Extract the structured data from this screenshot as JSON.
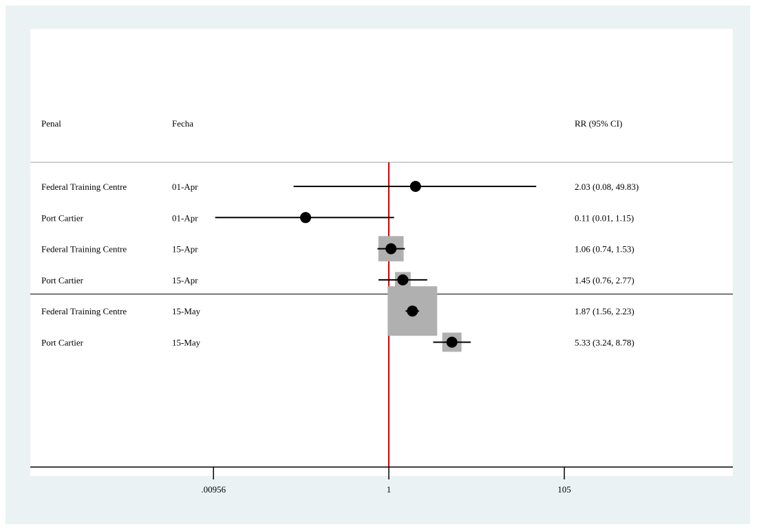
{
  "chart_data": {
    "type": "forest",
    "headers": {
      "col1": "Penal",
      "col2": "Fecha",
      "col3": "RR (95% CI)"
    },
    "x_scale": "log",
    "xlim": [
      9e-05,
      10000
    ],
    "ref_line": 1,
    "x_ticks": [
      {
        "value": 0.00956,
        "label": ".00956"
      },
      {
        "value": 1,
        "label": "1"
      },
      {
        "value": 105,
        "label": "105"
      }
    ],
    "rows": [
      {
        "penal": "Federal Training Centre",
        "fecha": "01-Apr",
        "rr": 2.03,
        "lo": 0.08,
        "hi": 49.83,
        "label": "2.03 (0.08, 49.83)",
        "weight": 0
      },
      {
        "penal": "Port Cartier",
        "fecha": "01-Apr",
        "rr": 0.11,
        "lo": 0.01,
        "hi": 1.15,
        "label": "0.11 (0.01, 1.15)",
        "weight": 0
      },
      {
        "penal": "Federal Training Centre",
        "fecha": "15-Apr",
        "rr": 1.06,
        "lo": 0.74,
        "hi": 1.53,
        "label": "1.06 (0.74, 1.53)",
        "weight": 0.26
      },
      {
        "penal": "Port Cartier",
        "fecha": "15-Apr",
        "rr": 1.45,
        "lo": 0.76,
        "hi": 2.77,
        "label": "1.45 (0.76, 2.77)",
        "weight": 0.1
      },
      {
        "penal": "Federal Training Centre",
        "fecha": "15-May",
        "rr": 1.87,
        "lo": 1.56,
        "hi": 2.23,
        "label": "1.87 (1.56, 2.23)",
        "weight": 1
      },
      {
        "penal": "Port Cartier",
        "fecha": "15-May",
        "rr": 5.33,
        "lo": 3.24,
        "hi": 8.78,
        "label": "5.33 (3.24, 8.78)",
        "weight": 0.15
      }
    ],
    "group_separator_after_row": 3,
    "colors": {
      "background": "#eaf2f3",
      "panel": "#ffffff",
      "ref_line": "#cc0000",
      "box": "#b0b0b0",
      "marker": "#000000",
      "header_rule": "#c0c0c0"
    }
  }
}
